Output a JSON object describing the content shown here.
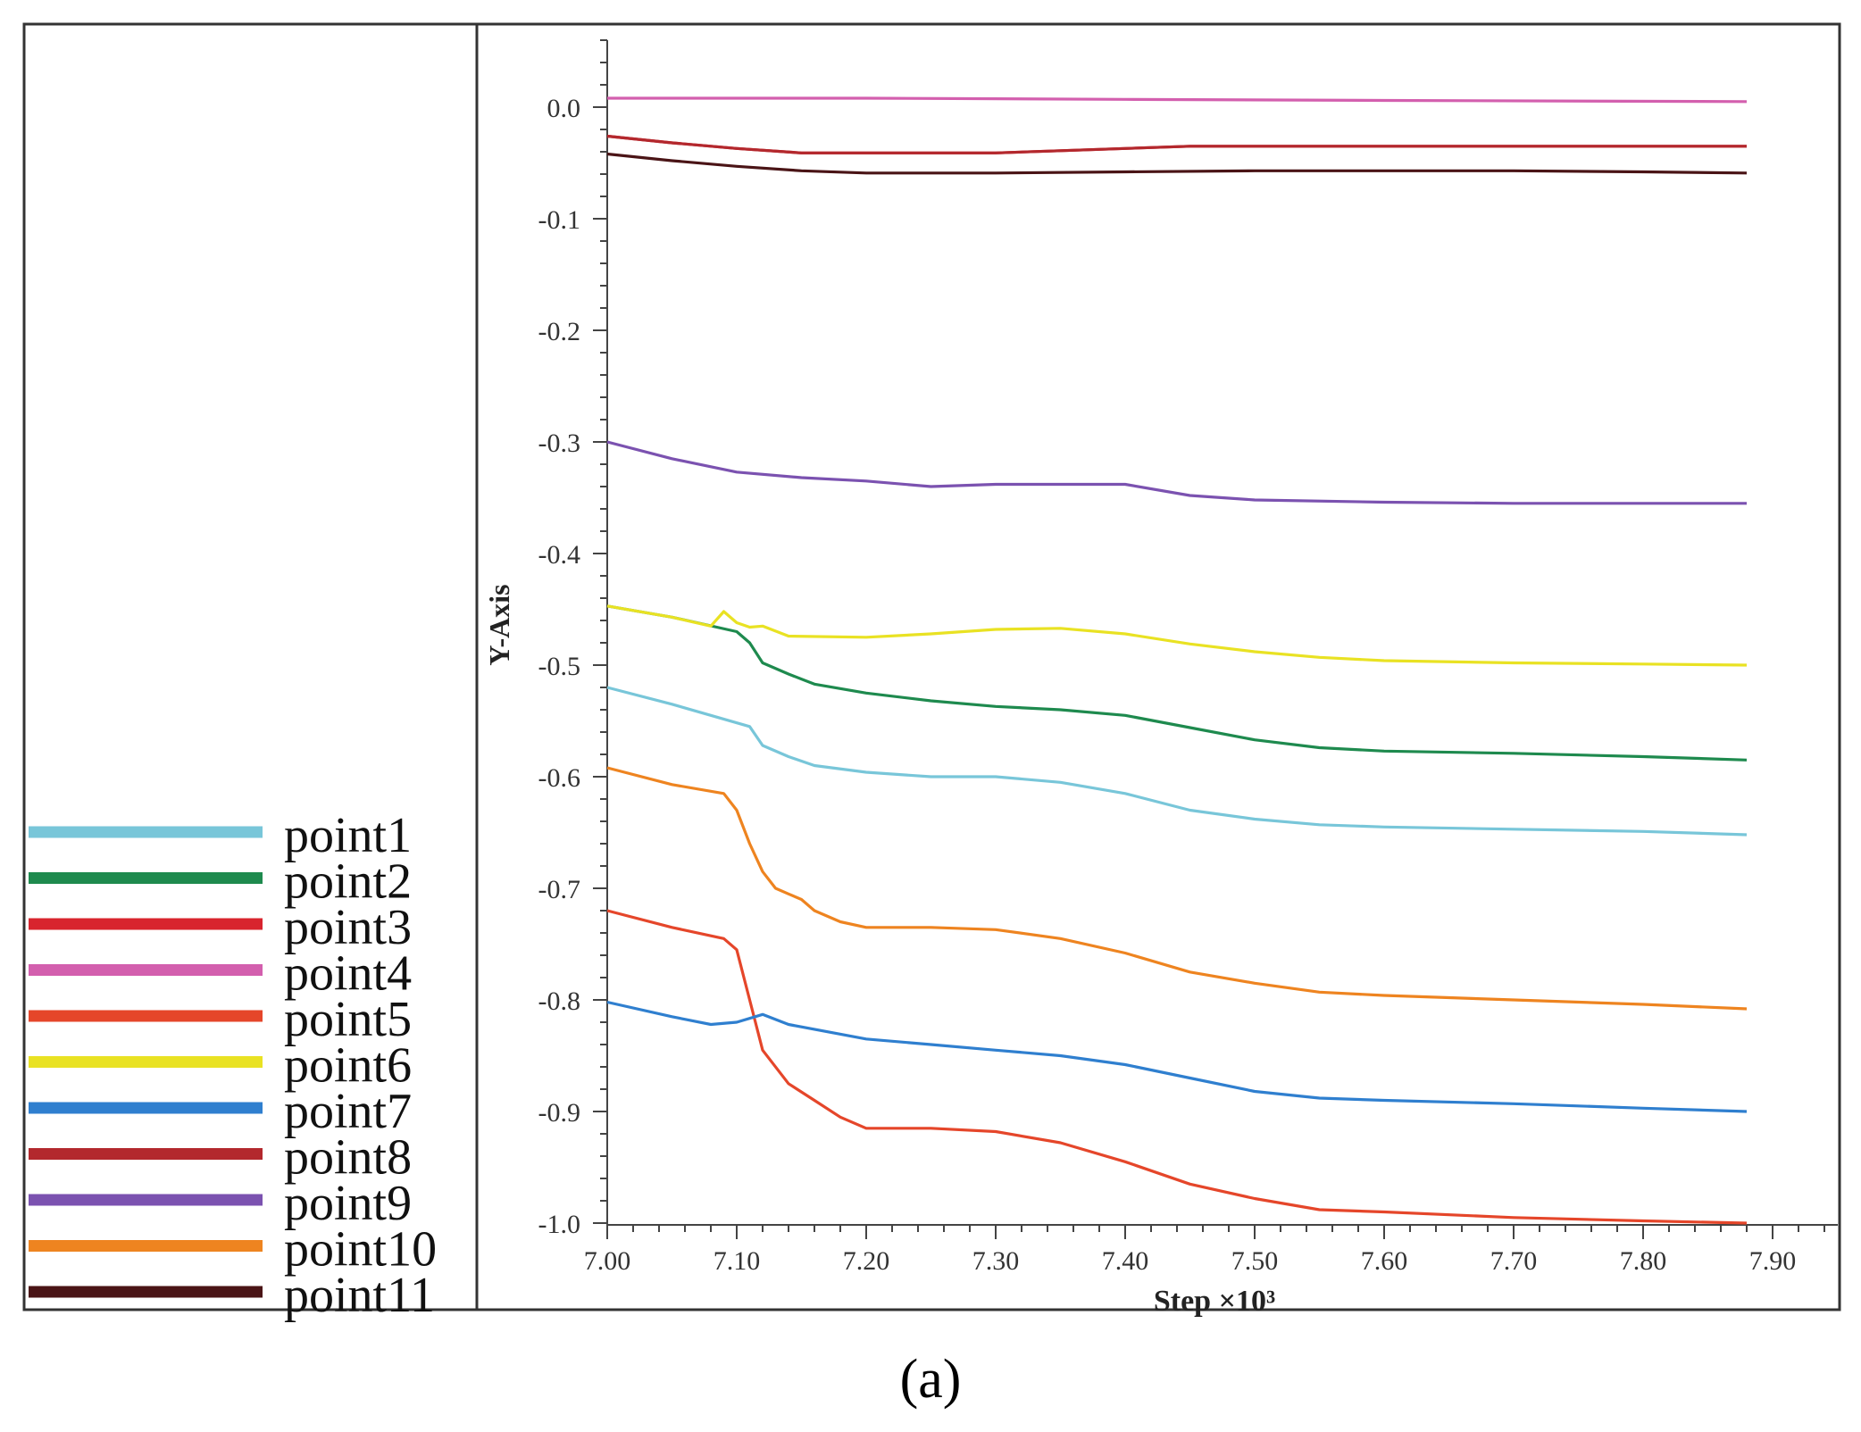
{
  "figure_label": "(a)",
  "chart_data": {
    "type": "line",
    "title": "",
    "xlabel": "Step ×10³",
    "ylabel": "Y-Axis",
    "xlim": [
      7.0,
      7.95
    ],
    "ylim": [
      -1.0,
      0.06
    ],
    "x_ticks": [
      7.0,
      7.1,
      7.2,
      7.3,
      7.4,
      7.5,
      7.6,
      7.7,
      7.8,
      7.9
    ],
    "x_tick_labels": [
      "7.00",
      "7.10",
      "7.20",
      "7.30",
      "7.40",
      "7.50",
      "7.60",
      "7.70",
      "7.80",
      "7.90"
    ],
    "y_ticks": [
      0.0,
      -0.1,
      -0.2,
      -0.3,
      -0.4,
      -0.5,
      -0.6,
      -0.7,
      -0.8,
      -0.9,
      -1.0
    ],
    "y_tick_labels": [
      "0.0",
      "-0.1",
      "-0.2",
      "-0.3",
      "-0.4",
      "-0.5",
      "-0.6",
      "-0.7",
      "-0.8",
      "-0.9",
      "-1.0"
    ],
    "grid": false,
    "legend_position": "left",
    "series": [
      {
        "name": "point1",
        "color": "#78C6D9",
        "x": [
          7.0,
          7.05,
          7.08,
          7.11,
          7.12,
          7.14,
          7.16,
          7.2,
          7.25,
          7.3,
          7.35,
          7.4,
          7.45,
          7.5,
          7.55,
          7.6,
          7.7,
          7.8,
          7.88
        ],
        "y": [
          -0.52,
          -0.535,
          -0.545,
          -0.555,
          -0.572,
          -0.582,
          -0.59,
          -0.596,
          -0.6,
          -0.6,
          -0.605,
          -0.615,
          -0.63,
          -0.638,
          -0.643,
          -0.645,
          -0.647,
          -0.649,
          -0.652
        ]
      },
      {
        "name": "point2",
        "color": "#1E8A4E",
        "x": [
          7.0,
          7.05,
          7.1,
          7.11,
          7.12,
          7.14,
          7.16,
          7.2,
          7.25,
          7.3,
          7.35,
          7.4,
          7.45,
          7.5,
          7.55,
          7.6,
          7.7,
          7.8,
          7.88
        ],
        "y": [
          -0.447,
          -0.457,
          -0.47,
          -0.48,
          -0.498,
          -0.508,
          -0.517,
          -0.525,
          -0.532,
          -0.537,
          -0.54,
          -0.545,
          -0.556,
          -0.567,
          -0.574,
          -0.577,
          -0.579,
          -0.582,
          -0.585
        ]
      },
      {
        "name": "point3",
        "color": "#D8242E",
        "x": [
          7.0,
          7.05,
          7.1,
          7.15,
          7.2,
          7.3,
          7.35,
          7.4,
          7.45,
          7.5,
          7.6,
          7.7,
          7.8,
          7.88
        ],
        "y": [
          -0.026,
          -0.032,
          -0.037,
          -0.041,
          -0.041,
          -0.041,
          -0.039,
          -0.037,
          -0.035,
          -0.035,
          -0.035,
          -0.035,
          -0.035,
          -0.035
        ]
      },
      {
        "name": "point4",
        "color": "#D35FAE",
        "x": [
          7.0,
          7.2,
          7.4,
          7.6,
          7.88
        ],
        "y": [
          0.008,
          0.008,
          0.007,
          0.006,
          0.005
        ]
      },
      {
        "name": "point5",
        "color": "#E5462A",
        "x": [
          7.0,
          7.05,
          7.09,
          7.1,
          7.11,
          7.12,
          7.14,
          7.16,
          7.18,
          7.2,
          7.25,
          7.3,
          7.35,
          7.4,
          7.45,
          7.5,
          7.55,
          7.6,
          7.7,
          7.8,
          7.88
        ],
        "y": [
          -0.72,
          -0.735,
          -0.745,
          -0.755,
          -0.8,
          -0.845,
          -0.875,
          -0.89,
          -0.905,
          -0.915,
          -0.915,
          -0.918,
          -0.928,
          -0.945,
          -0.965,
          -0.978,
          -0.988,
          -0.99,
          -0.995,
          -0.998,
          -1.0
        ]
      },
      {
        "name": "point6",
        "color": "#E9E223",
        "x": [
          7.0,
          7.05,
          7.08,
          7.09,
          7.1,
          7.11,
          7.12,
          7.14,
          7.2,
          7.25,
          7.3,
          7.35,
          7.4,
          7.45,
          7.5,
          7.55,
          7.6,
          7.7,
          7.8,
          7.88
        ],
        "y": [
          -0.447,
          -0.457,
          -0.465,
          -0.452,
          -0.462,
          -0.466,
          -0.465,
          -0.474,
          -0.475,
          -0.472,
          -0.468,
          -0.467,
          -0.472,
          -0.481,
          -0.488,
          -0.493,
          -0.496,
          -0.498,
          -0.499,
          -0.5
        ]
      },
      {
        "name": "point7",
        "color": "#2F7FCF",
        "x": [
          7.0,
          7.05,
          7.08,
          7.1,
          7.12,
          7.14,
          7.2,
          7.25,
          7.3,
          7.35,
          7.4,
          7.45,
          7.5,
          7.55,
          7.6,
          7.7,
          7.8,
          7.88
        ],
        "y": [
          -0.802,
          -0.815,
          -0.822,
          -0.82,
          -0.813,
          -0.822,
          -0.835,
          -0.84,
          -0.845,
          -0.85,
          -0.858,
          -0.87,
          -0.882,
          -0.888,
          -0.89,
          -0.893,
          -0.897,
          -0.9
        ]
      },
      {
        "name": "point8",
        "color": "#B3282D",
        "x": [
          7.0,
          7.05,
          7.1,
          7.15,
          7.2,
          7.3,
          7.35,
          7.4,
          7.45,
          7.5,
          7.6,
          7.7,
          7.8,
          7.88
        ],
        "y": [
          -0.026,
          -0.032,
          -0.037,
          -0.041,
          -0.041,
          -0.041,
          -0.039,
          -0.037,
          -0.035,
          -0.035,
          -0.035,
          -0.035,
          -0.035,
          -0.035
        ]
      },
      {
        "name": "point9",
        "color": "#7B52B0",
        "x": [
          7.0,
          7.05,
          7.1,
          7.15,
          7.2,
          7.25,
          7.3,
          7.35,
          7.4,
          7.45,
          7.5,
          7.6,
          7.7,
          7.8,
          7.88
        ],
        "y": [
          -0.3,
          -0.315,
          -0.327,
          -0.332,
          -0.335,
          -0.34,
          -0.338,
          -0.338,
          -0.338,
          -0.348,
          -0.352,
          -0.354,
          -0.355,
          -0.355,
          -0.355
        ]
      },
      {
        "name": "point10",
        "color": "#EE8420",
        "x": [
          7.0,
          7.05,
          7.09,
          7.1,
          7.11,
          7.12,
          7.13,
          7.14,
          7.15,
          7.16,
          7.18,
          7.2,
          7.25,
          7.3,
          7.35,
          7.4,
          7.45,
          7.5,
          7.55,
          7.6,
          7.7,
          7.8,
          7.88
        ],
        "y": [
          -0.592,
          -0.607,
          -0.615,
          -0.63,
          -0.66,
          -0.685,
          -0.7,
          -0.705,
          -0.71,
          -0.72,
          -0.73,
          -0.735,
          -0.735,
          -0.737,
          -0.745,
          -0.758,
          -0.775,
          -0.785,
          -0.793,
          -0.796,
          -0.8,
          -0.804,
          -0.808
        ]
      },
      {
        "name": "point11",
        "color": "#4A1416",
        "x": [
          7.0,
          7.05,
          7.1,
          7.15,
          7.2,
          7.3,
          7.4,
          7.5,
          7.6,
          7.7,
          7.8,
          7.88
        ],
        "y": [
          -0.042,
          -0.048,
          -0.053,
          -0.057,
          -0.059,
          -0.059,
          -0.058,
          -0.057,
          -0.057,
          -0.057,
          -0.058,
          -0.059
        ]
      }
    ]
  }
}
